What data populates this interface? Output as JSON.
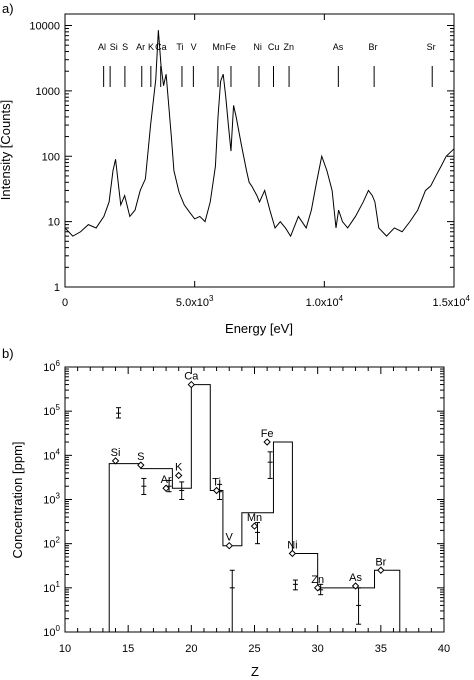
{
  "chart_data": [
    {
      "panel_label": "a)",
      "type": "line",
      "xlabel": "Energy [eV]",
      "ylabel": "Intensity [Counts]",
      "xlim": [
        0,
        15000
      ],
      "ylim": [
        1,
        15000
      ],
      "y_scale": "log",
      "x_ticks": [
        {
          "value": 0,
          "label": "0"
        },
        {
          "value": 5000,
          "label": "5.0x10",
          "exp": "3"
        },
        {
          "value": 10000,
          "label": "1.0x10",
          "exp": "4"
        },
        {
          "value": 15000,
          "label": "1.5x10",
          "exp": "4"
        }
      ],
      "y_ticks": [
        {
          "value": 1,
          "label": "1"
        },
        {
          "value": 10,
          "label": "10"
        },
        {
          "value": 100,
          "label": "100"
        },
        {
          "value": 1000,
          "label": "1000"
        },
        {
          "value": 10000,
          "label": "10000"
        }
      ],
      "element_markers": [
        {
          "label": "Al",
          "energy": 1490
        },
        {
          "label": "Si",
          "energy": 1740
        },
        {
          "label": "S",
          "energy": 2310
        },
        {
          "label": "Ar",
          "energy": 2960
        },
        {
          "label": "K",
          "energy": 3310
        },
        {
          "label": "Ca",
          "energy": 3690
        },
        {
          "label": "Ti",
          "energy": 4510
        },
        {
          "label": "V",
          "energy": 4950
        },
        {
          "label": "Mn",
          "energy": 5900
        },
        {
          "label": "Fe",
          "energy": 6400
        },
        {
          "label": "Ni",
          "energy": 7480
        },
        {
          "label": "Cu",
          "energy": 8040
        },
        {
          "label": "Zn",
          "energy": 8640
        },
        {
          "label": "As",
          "energy": 10540
        },
        {
          "label": "Br",
          "energy": 11920
        },
        {
          "label": "Sr",
          "energy": 14160
        }
      ],
      "series": [
        {
          "x": [
            0,
            300,
            600,
            900,
            1200,
            1500,
            1700,
            1850,
            1950,
            2050,
            2150,
            2300,
            2500,
            2700,
            2900,
            3100,
            3300,
            3500,
            3600,
            3700,
            3800,
            3900,
            4000,
            4100,
            4200,
            4400,
            4600,
            4800,
            5000,
            5200,
            5400,
            5600,
            5800,
            5900,
            6000,
            6100,
            6200,
            6300,
            6400,
            6500,
            6600,
            6800,
            7000,
            7100,
            7200,
            7400,
            7500,
            7700,
            7900,
            8100,
            8300,
            8500,
            8700,
            9000,
            9300,
            9500,
            9700,
            9900,
            10100,
            10300,
            10450,
            10550,
            10700,
            10900,
            11200,
            11500,
            11700,
            11850,
            11950,
            12100,
            12400,
            12700,
            13000,
            13300,
            13600,
            13900,
            14100,
            14300,
            14500,
            14700,
            15000
          ],
          "y": [
            8,
            6,
            7,
            9,
            8,
            12,
            20,
            60,
            90,
            40,
            18,
            25,
            12,
            15,
            30,
            45,
            300,
            1500,
            8500,
            2500,
            1200,
            1800,
            600,
            200,
            60,
            28,
            18,
            14,
            11,
            12,
            10,
            20,
            70,
            400,
            1400,
            1800,
            800,
            300,
            120,
            600,
            400,
            150,
            60,
            40,
            35,
            25,
            20,
            30,
            15,
            8,
            10,
            8,
            6,
            12,
            8,
            15,
            40,
            100,
            60,
            30,
            8,
            15,
            10,
            8,
            12,
            20,
            30,
            25,
            20,
            8,
            6,
            8,
            7,
            10,
            15,
            30,
            35,
            50,
            70,
            100,
            130
          ]
        }
      ]
    },
    {
      "panel_label": "b)",
      "type": "step",
      "xlabel": "Z",
      "ylabel": "Concentration [ppm]",
      "xlim": [
        10,
        40
      ],
      "ylim": [
        1,
        1000000
      ],
      "y_scale": "log",
      "x_ticks": [
        {
          "value": 10,
          "label": "10"
        },
        {
          "value": 15,
          "label": "15"
        },
        {
          "value": 20,
          "label": "20"
        },
        {
          "value": 25,
          "label": "25"
        },
        {
          "value": 30,
          "label": "30"
        },
        {
          "value": 35,
          "label": "35"
        },
        {
          "value": 40,
          "label": "40"
        }
      ],
      "y_ticks": [
        {
          "value": 1,
          "label": "10",
          "exp": "0"
        },
        {
          "value": 10,
          "label": "10",
          "exp": "1"
        },
        {
          "value": 100,
          "label": "10",
          "exp": "2"
        },
        {
          "value": 1000,
          "label": "10",
          "exp": "3"
        },
        {
          "value": 10000,
          "label": "10",
          "exp": "4"
        },
        {
          "value": 100000,
          "label": "10",
          "exp": "5"
        },
        {
          "value": 1000000,
          "label": "10",
          "exp": "6"
        }
      ],
      "step_series": {
        "edges": [
          13.5,
          16,
          18.5,
          20,
          21.5,
          22.5,
          24,
          26.5,
          28,
          29,
          30,
          33,
          34.5,
          36.5
        ],
        "values": [
          6500,
          5000,
          1800,
          400000,
          1600,
          90,
          500,
          20000,
          60,
          60,
          10,
          10,
          25
        ]
      },
      "element_points": [
        {
          "label": "Si",
          "z": 14,
          "value": 7500
        },
        {
          "label": "S",
          "z": 16,
          "value": 6000
        },
        {
          "label": "Ar",
          "z": 18,
          "value": 1800
        },
        {
          "label": "K",
          "z": 19,
          "value": 3500
        },
        {
          "label": "Ca",
          "z": 20,
          "value": 400000
        },
        {
          "label": "Ti",
          "z": 22,
          "value": 1600
        },
        {
          "label": "V",
          "z": 23,
          "value": 90
        },
        {
          "label": "Mn",
          "z": 25,
          "value": 250
        },
        {
          "label": "Fe",
          "z": 26,
          "value": 20000
        },
        {
          "label": "Ni",
          "z": 28,
          "value": 60
        },
        {
          "label": "Zn",
          "z": 30,
          "value": 10
        },
        {
          "label": "As",
          "z": 33,
          "value": 11
        },
        {
          "label": "Br",
          "z": 35,
          "value": 25
        }
      ],
      "error_points": [
        {
          "z": 14,
          "value": 90000,
          "low": 70000,
          "high": 120000
        },
        {
          "z": 16,
          "value": 2000,
          "low": 1300,
          "high": 3000
        },
        {
          "z": 18,
          "value": 2000,
          "low": 1500,
          "high": 2700
        },
        {
          "z": 19,
          "value": 1600,
          "low": 1000,
          "high": 2500
        },
        {
          "z": 22,
          "value": 1500,
          "low": 1000,
          "high": 2200
        },
        {
          "z": 23,
          "value": 10,
          "low": 1,
          "high": 25
        },
        {
          "z": 25,
          "value": 180,
          "low": 100,
          "high": 300
        },
        {
          "z": 26,
          "value": 7000,
          "low": 3000,
          "high": 12000
        },
        {
          "z": 28,
          "value": 12,
          "low": 9,
          "high": 15
        },
        {
          "z": 30,
          "value": 9,
          "low": 7,
          "high": 12
        },
        {
          "z": 33,
          "value": 4,
          "low": 1.5,
          "high": 10
        }
      ]
    }
  ]
}
